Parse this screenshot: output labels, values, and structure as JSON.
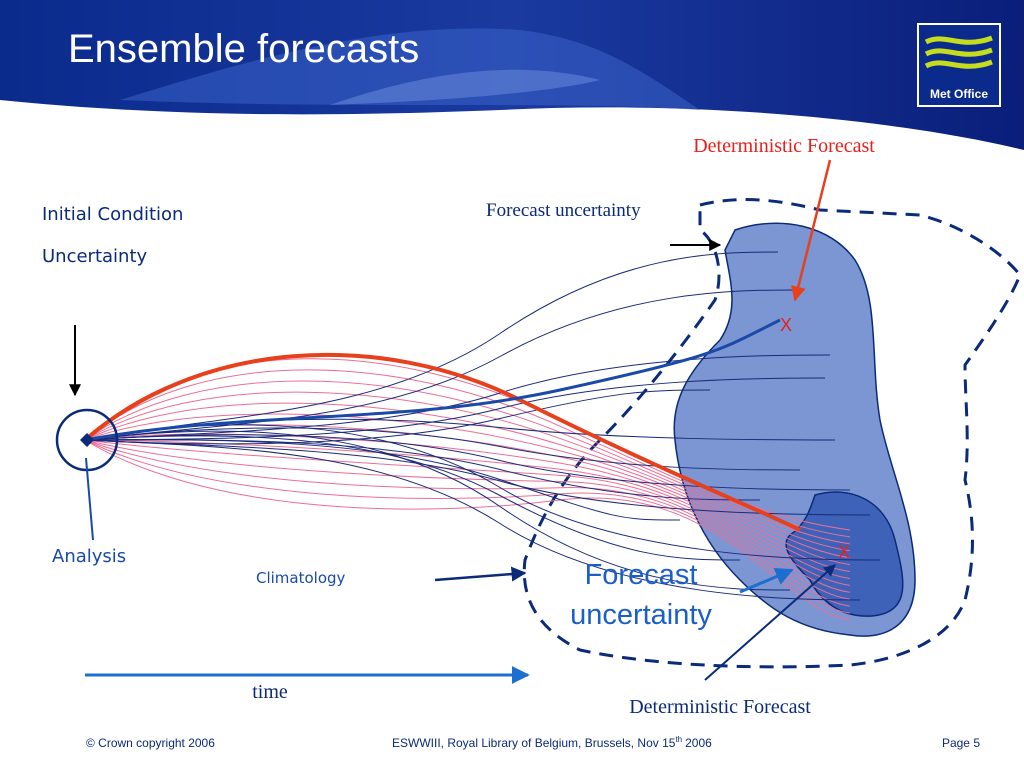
{
  "header": {
    "title": "Ensemble forecasts",
    "logo": "Met Office"
  },
  "labels": {
    "deterministic_top": "Deterministic Forecast",
    "initial_condition": [
      "Initial Condition",
      "Uncertainty"
    ],
    "forecast_uncertainty_small": "Forecast uncertainty",
    "analysis": "Analysis",
    "climatology": "Climatology",
    "forecast_uncertainty_large": [
      "Forecast",
      "uncertainty"
    ],
    "time": "time",
    "deterministic_bottom": "Deterministic Forecast",
    "markers": [
      "X",
      "X"
    ]
  },
  "footer": {
    "copyright": "© Crown copyright 2006",
    "event": {
      "text": "ESWWIII, Royal Library of Belgium, Brussels, Nov 15",
      "sup": "th",
      "tail": "2006"
    },
    "page": "Page 5"
  }
}
